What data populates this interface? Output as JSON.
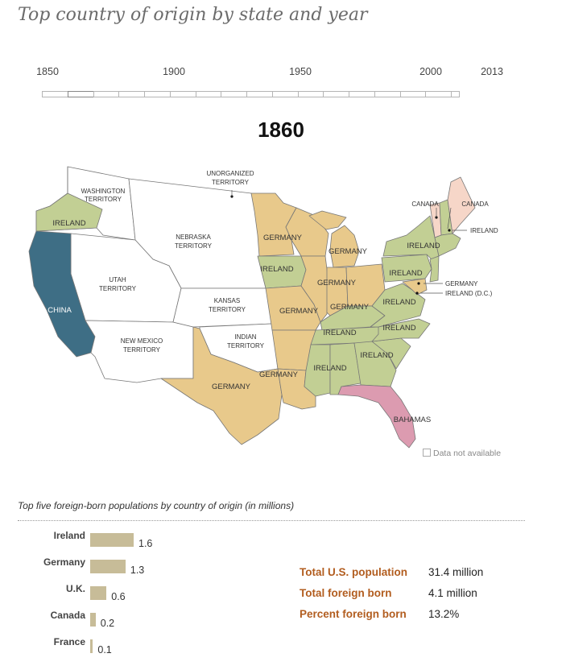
{
  "title": "Top country of origin by state and year",
  "timeline": {
    "labels": [
      "1850",
      "1900",
      "1950",
      "2000",
      "2013"
    ],
    "selected_year": "1860"
  },
  "map": {
    "colors": {
      "ireland": "#c2cf94",
      "germany": "#e8c98b",
      "china": "#3e6e85",
      "canada": "#f6d6c8",
      "bahamas": "#dc9bb0",
      "unavailable": "#ffffff"
    },
    "labels": {
      "washington_territory": [
        "WASHINGTON",
        "TERRITORY"
      ],
      "unorganized_territory": [
        "UNORGANIZED",
        "TERRITORY"
      ],
      "nebraska_territory": [
        "NEBRASKA",
        "TERRITORY"
      ],
      "utah_territory": [
        "UTAH",
        "TERRITORY"
      ],
      "kansas_territory": [
        "KANSAS",
        "TERRITORY"
      ],
      "indian_territory": [
        "INDIAN",
        "TERRITORY"
      ],
      "new_mexico_territory": [
        "NEW MEXICO",
        "TERRITORY"
      ],
      "oregon": "IRELAND",
      "california": "CHINA",
      "texas": "GERMANY",
      "minnesota": "GERMANY",
      "wisconsin": "GERMANY",
      "iowa": "IRELAND",
      "michigan": "GERMANY",
      "illinois": "GERMANY",
      "indiana": "GERMANY",
      "ohio": "GERMANY",
      "missouri": "GERMANY",
      "arkansas": "GERMANY",
      "kentucky": "IRELAND",
      "tennessee": "IRELAND",
      "mississippi": "IRELAND",
      "georgia": "IRELAND",
      "new_york": "IRELAND",
      "pennsylvania": "IRELAND",
      "virginia": "IRELAND",
      "north_carolina": "IRELAND",
      "florida": "BAHAMAS",
      "vermont": "CANADA",
      "maine": "CANADA",
      "new_england": "IRELAND",
      "maryland": "GERMANY",
      "dc": "IRELAND (D.C.)"
    },
    "legend_unavailable": "Data not available"
  },
  "chart_data": {
    "type": "bar",
    "title": "Top five foreign-born populations by country of origin (in millions)",
    "categories": [
      "Ireland",
      "Germany",
      "U.K.",
      "Canada",
      "France"
    ],
    "values": [
      1.6,
      1.3,
      0.6,
      0.2,
      0.1
    ],
    "value_labels": [
      "1.6",
      "1.3",
      "0.6",
      "0.2",
      "0.1"
    ],
    "xlabel": "",
    "ylabel": "",
    "orientation": "horizontal"
  },
  "stats": [
    {
      "label": "Total U.S. population",
      "value": "31.4 million"
    },
    {
      "label": "Total foreign born",
      "value": "4.1 million"
    },
    {
      "label": "Percent foreign born",
      "value": "13.2%"
    }
  ]
}
